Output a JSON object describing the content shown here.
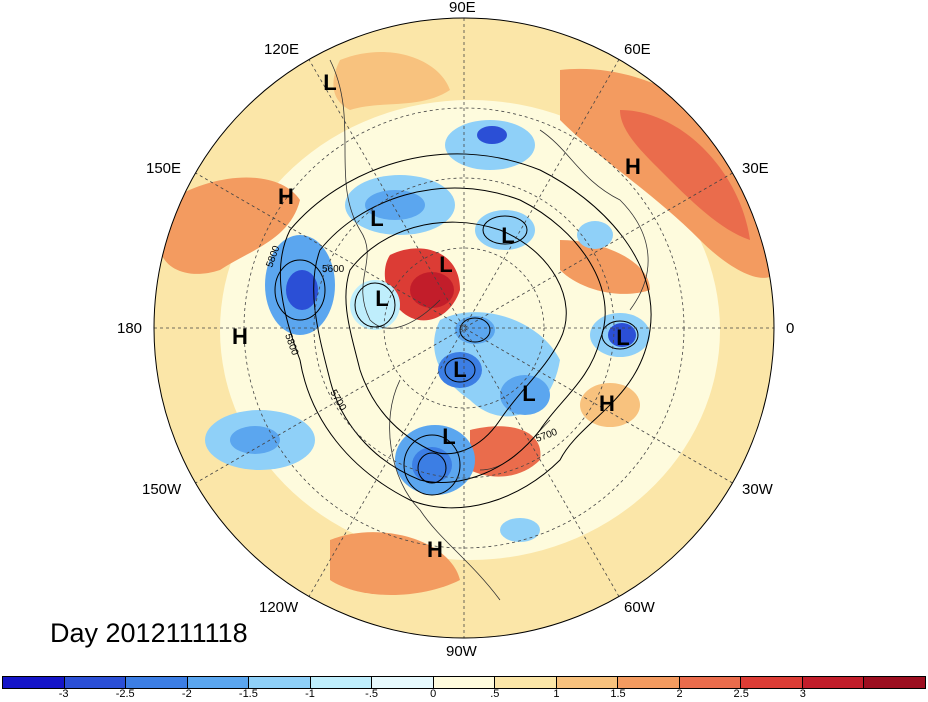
{
  "title": "Day 2012111118",
  "longitude_labels": [
    "90E",
    "60E",
    "30E",
    "0",
    "30W",
    "60W",
    "90W",
    "120W",
    "150W",
    "180",
    "150E",
    "120E"
  ],
  "pressure_centers": [
    {
      "label": "L",
      "name": "low-east-asia"
    },
    {
      "label": "H",
      "name": "high-ural"
    },
    {
      "label": "H",
      "name": "high-west-pacific"
    },
    {
      "label": "L",
      "name": "low-siberia"
    },
    {
      "label": "L",
      "name": "low-central-siberia"
    },
    {
      "label": "L",
      "name": "low-east-siberia"
    },
    {
      "label": "L",
      "name": "low-bering"
    },
    {
      "label": "H",
      "name": "high-dateline"
    },
    {
      "label": "L",
      "name": "low-europe"
    },
    {
      "label": "L",
      "name": "low-greenland"
    },
    {
      "label": "L",
      "name": "low-north-atlantic"
    },
    {
      "label": "H",
      "name": "high-atlantic"
    },
    {
      "label": "L",
      "name": "low-north-america"
    },
    {
      "label": "H",
      "name": "high-mexico"
    }
  ],
  "contour_labels": [
    "5800",
    "5600",
    "5800",
    "5700",
    "5700"
  ],
  "colorbar": {
    "colors": [
      "#1515c8",
      "#2b4fd6",
      "#3c7ee4",
      "#5ba6ef",
      "#8fd0f8",
      "#bfeefc",
      "#e6f9fd",
      "#fefbdd",
      "#fbe6a8",
      "#f8c27e",
      "#f39b60",
      "#ea6c4c",
      "#dc3c35",
      "#c21d2a",
      "#9c0e1f"
    ],
    "ticks": [
      "-3",
      "-2.5",
      "-2",
      "-1.5",
      "-1",
      "-.5",
      "0",
      ".5",
      "1",
      "1.5",
      "2",
      "2.5",
      "3"
    ]
  }
}
